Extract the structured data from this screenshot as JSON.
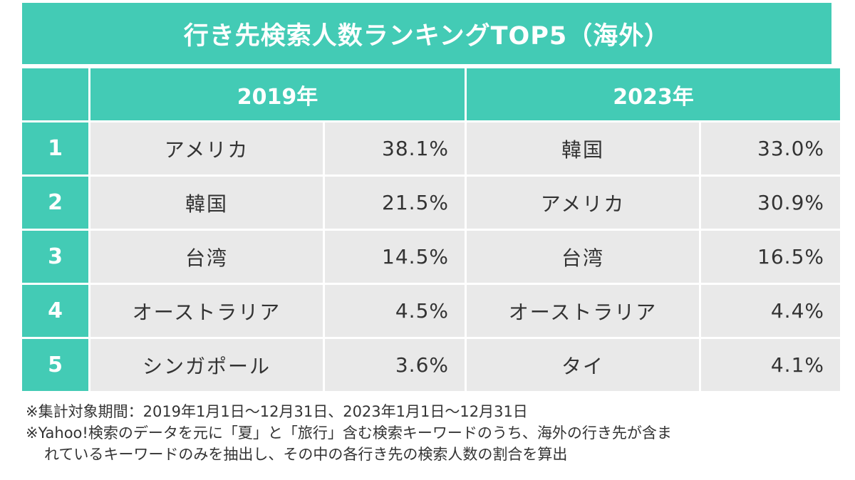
{
  "title": "行き先検索人数ランキングTOP5（海外）",
  "headers": {
    "corner": "",
    "year_a": "2019年",
    "year_b": "2023年"
  },
  "rows": [
    {
      "rank": "1",
      "a_name": "アメリカ",
      "a_pct": "38.1%",
      "b_name": "韓国",
      "b_pct": "33.0%"
    },
    {
      "rank": "2",
      "a_name": "韓国",
      "a_pct": "21.5%",
      "b_name": "アメリカ",
      "b_pct": "30.9%"
    },
    {
      "rank": "3",
      "a_name": "台湾",
      "a_pct": "14.5%",
      "b_name": "台湾",
      "b_pct": "16.5%"
    },
    {
      "rank": "4",
      "a_name": "オーストラリア",
      "a_pct": "4.5%",
      "b_name": "オーストラリア",
      "b_pct": "4.4%"
    },
    {
      "rank": "5",
      "a_name": "シンガポール",
      "a_pct": "3.6%",
      "b_name": "タイ",
      "b_pct": "4.1%"
    }
  ],
  "notes": {
    "line1": "※集計対象期間：2019年1月1日〜12月31日、2023年1月1日〜12月31日",
    "line2": "※Yahoo!検索のデータを元に「夏」と「旅行」含む検索キーワードのうち、海外の行き先が含ま",
    "line3": "れているキーワードのみを抽出し、その中の各行き先の検索人数の割合を算出"
  },
  "colors": {
    "accent": "#43cbb5",
    "cell_bg": "#e9e9e9",
    "text": "#333333"
  }
}
